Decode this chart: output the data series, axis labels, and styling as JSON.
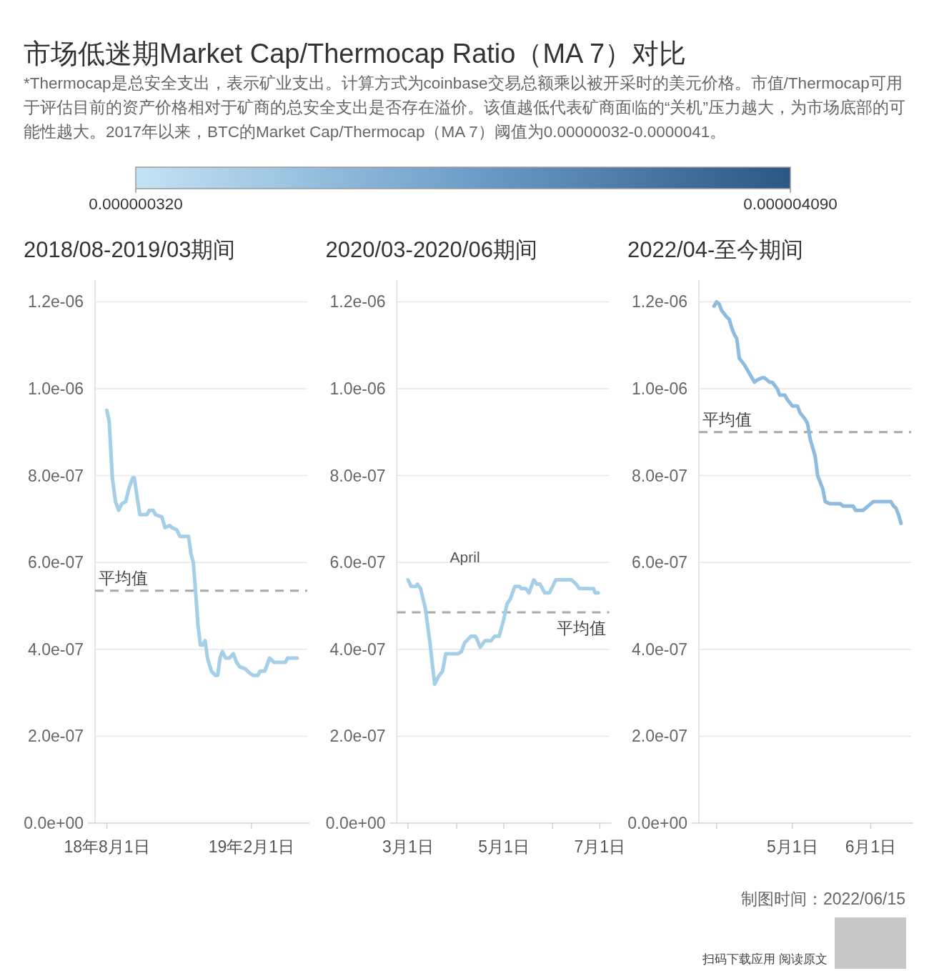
{
  "chart_data": [
    {
      "type": "line",
      "title": "市场低迷期Market Cap/Thermocap Ratio（MA 7）对比",
      "subtitle": "*Thermocap是总安全支出，表示矿业支出。计算方式为coinbase交易总额乘以被开采时的美元价格。市值/Thermocap可用于评估目前的资产价格相对于矿商的总安全支出是否存在溢价。该值越低代表矿商面临的“关机”压力越大，为市场底部的可能性越大。2017年以来，BTC的Market Cap/Thermocap（MA 7）阈值为0.00000032-0.0000041。",
      "clim": [
        3.2e-07,
        4.09e-06
      ],
      "cticks": [
        {
          "value": 3.2e-07,
          "label": "0.000000320"
        },
        {
          "value": 4.09e-06,
          "label": "0.000004090"
        }
      ],
      "x": [
        "2018-08-01",
        "2018-08-04",
        "2018-08-08",
        "2018-08-12",
        "2018-08-16",
        "2018-08-20",
        "2018-08-25",
        "2018-08-29",
        "2018-09-03",
        "2018-09-05",
        "2018-09-09",
        "2018-09-12",
        "2018-09-21",
        "2018-09-24",
        "2018-09-29",
        "2018-10-02",
        "2018-10-10",
        "2018-10-14",
        "2018-10-20",
        "2018-10-23",
        "2018-10-29",
        "2018-11-02",
        "2018-11-13",
        "2018-11-16",
        "2018-11-19",
        "2018-11-22",
        "2018-11-25",
        "2018-11-28",
        "2018-12-01",
        "2018-12-04",
        "2018-12-07",
        "2018-12-12",
        "2018-12-17",
        "2018-12-20",
        "2018-12-23",
        "2018-12-26",
        "2018-12-30",
        "2019-01-04",
        "2019-01-09",
        "2019-01-13",
        "2019-01-17",
        "2019-01-24",
        "2019-01-30",
        "2019-02-03",
        "2019-02-09",
        "2019-02-12",
        "2019-02-18",
        "2019-02-24",
        "2019-03-02",
        "2019-03-16",
        "2019-03-19",
        "2019-03-31"
      ],
      "series": [
        {
          "color": "#a5cee8",
          "values": [
            9.5e-07,
            9.25e-07,
            7.95e-07,
            7.4e-07,
            7.2e-07,
            7.35e-07,
            7.4e-07,
            7.7e-07,
            7.95e-07,
            7.95e-07,
            7.45e-07,
            7.1e-07,
            7.1e-07,
            7.2e-07,
            7.2e-07,
            7.1e-07,
            7.05e-07,
            6.8e-07,
            6.85e-07,
            6.8e-07,
            6.75e-07,
            6.6e-07,
            6.6e-07,
            6.2e-07,
            6e-07,
            5.3e-07,
            4.55e-07,
            4.1e-07,
            4.1e-07,
            4.2e-07,
            3.8e-07,
            3.5e-07,
            3.4e-07,
            3.4e-07,
            3.8e-07,
            3.95e-07,
            3.8e-07,
            3.8e-07,
            3.9e-07,
            3.7e-07,
            3.6e-07,
            3.55e-07,
            3.45e-07,
            3.4e-07,
            3.4e-07,
            3.5e-07,
            3.5e-07,
            3.8e-07,
            3.7e-07,
            3.7e-07,
            3.8e-07,
            3.8e-07
          ]
        }
      ],
      "xlim": [
        "2018-07-17",
        "2019-04-13"
      ],
      "xticks": [
        {
          "value": "2018-08-01",
          "label": "18年8月1日"
        },
        {
          "value": "2019-02-01",
          "label": "19年2月1日"
        }
      ],
      "ylim": [
        0,
        1.25e-06
      ],
      "yticks": [
        {
          "value": 0,
          "label": "0.0e+00"
        },
        {
          "value": 2e-07,
          "label": "2.0e-07"
        },
        {
          "value": 4e-07,
          "label": "4.0e-07"
        },
        {
          "value": 6e-07,
          "label": "6.0e-07"
        },
        {
          "value": 8e-07,
          "label": "8.0e-07"
        },
        {
          "value": 1e-06,
          "label": "1.0e-06"
        },
        {
          "value": 1.2e-06,
          "label": "1.2e-06"
        }
      ],
      "ref_lines": [
        {
          "axis": "y",
          "value": 5.35e-07,
          "label": "平均值",
          "color": "#a9a9a9",
          "line_style": "dashed"
        }
      ],
      "grid": "y",
      "xlabel": "2018/08-2019/03期间"
    },
    {
      "type": "line",
      "x": [
        "2020-03-01",
        "2020-03-03",
        "2020-03-06",
        "2020-03-07",
        "2020-03-09",
        "2020-03-12",
        "2020-03-15",
        "2020-03-17",
        "2020-03-18",
        "2020-03-20",
        "2020-03-23",
        "2020-03-25",
        "2020-04-02",
        "2020-04-04",
        "2020-04-06",
        "2020-04-10",
        "2020-04-13",
        "2020-04-16",
        "2020-04-19",
        "2020-04-23",
        "2020-04-25",
        "2020-04-28",
        "2020-05-01",
        "2020-05-03",
        "2020-05-05",
        "2020-05-08",
        "2020-05-11",
        "2020-05-12",
        "2020-05-15",
        "2020-05-17",
        "2020-05-20",
        "2020-05-22",
        "2020-05-24",
        "2020-05-27",
        "2020-05-30",
        "2020-06-03",
        "2020-06-13",
        "2020-06-16",
        "2020-06-18",
        "2020-06-27",
        "2020-06-28",
        "2020-06-30"
      ],
      "series": [
        {
          "color": "#a5cee8",
          "values": [
            5.6e-07,
            5.45e-07,
            5.45e-07,
            5.5e-07,
            5.4e-07,
            4.95e-07,
            4.15e-07,
            3.5e-07,
            3.2e-07,
            3.35e-07,
            3.5e-07,
            3.9e-07,
            3.9e-07,
            3.95e-07,
            4.15e-07,
            4.3e-07,
            4.3e-07,
            4.05e-07,
            4.2e-07,
            4.2e-07,
            4.3e-07,
            4.3e-07,
            4.7e-07,
            5.05e-07,
            5.15e-07,
            5.45e-07,
            5.45e-07,
            5.4e-07,
            5.4e-07,
            5.3e-07,
            5.6e-07,
            5.5e-07,
            5.5e-07,
            5.3e-07,
            5.3e-07,
            5.6e-07,
            5.6e-07,
            5.5e-07,
            5.4e-07,
            5.4e-07,
            5.3e-07,
            5.3e-07
          ]
        }
      ],
      "xlim": [
        "2020-02-23",
        "2020-07-07"
      ],
      "xticks": [
        {
          "value": "2020-03-01",
          "label": "3月1日"
        },
        {
          "value": "2020-04-01",
          "label": null
        },
        {
          "value": "2020-05-01",
          "label": "5月1日"
        },
        {
          "value": "2020-06-01",
          "label": null
        },
        {
          "value": "2020-07-01",
          "label": "7月1日"
        }
      ],
      "ylim": [
        0,
        1.25e-06
      ],
      "yticks": [
        {
          "value": 0,
          "label": "0.0e+00"
        },
        {
          "value": 2e-07,
          "label": "2.0e-07"
        },
        {
          "value": 4e-07,
          "label": "4.0e-07"
        },
        {
          "value": 6e-07,
          "label": "6.0e-07"
        },
        {
          "value": 8e-07,
          "label": "8.0e-07"
        },
        {
          "value": 1e-06,
          "label": "1.0e-06"
        },
        {
          "value": 1.2e-06,
          "label": "1.2e-06"
        }
      ],
      "ref_lines": [
        {
          "axis": "y",
          "value": 4.85e-07,
          "label": "平均值",
          "color": "#a9a9a9",
          "line_style": "dashed"
        }
      ],
      "grid": "y",
      "xlabel": "2020/03-2020/06期间",
      "annotations": [
        "April"
      ]
    },
    {
      "type": "line",
      "x": [
        "2022-03-31",
        "2022-04-01",
        "2022-04-02",
        "2022-04-03",
        "2022-04-05",
        "2022-04-06",
        "2022-04-07",
        "2022-04-08",
        "2022-04-09",
        "2022-04-10",
        "2022-04-12",
        "2022-04-14",
        "2022-04-16",
        "2022-04-17",
        "2022-04-19",
        "2022-04-20",
        "2022-04-22",
        "2022-04-23",
        "2022-04-25",
        "2022-04-26",
        "2022-04-28",
        "2022-04-29",
        "2022-05-01",
        "2022-05-03",
        "2022-05-04",
        "2022-05-06",
        "2022-05-07",
        "2022-05-08",
        "2022-05-10",
        "2022-05-11",
        "2022-05-13",
        "2022-05-14",
        "2022-05-16",
        "2022-05-20",
        "2022-05-21",
        "2022-05-25",
        "2022-05-26",
        "2022-05-29",
        "2022-05-31",
        "2022-06-02",
        "2022-06-09",
        "2022-06-10",
        "2022-06-11",
        "2022-06-12",
        "2022-06-13"
      ],
      "series": [
        {
          "color": "#8fbcde",
          "values": [
            1.19e-06,
            1.2e-06,
            1.195e-06,
            1.18e-06,
            1.165e-06,
            1.16e-06,
            1.14e-06,
            1.125e-06,
            1.115e-06,
            1.07e-06,
            1.055e-06,
            1.035e-06,
            1.015e-06,
            1.02e-06,
            1.025e-06,
            1.025e-06,
            1.015e-06,
            1.015e-06,
            1e-06,
            9.85e-07,
            9.85e-07,
            9.75e-07,
            9.6e-07,
            9.6e-07,
            9.45e-07,
            9.3e-07,
            9.2e-07,
            8.85e-07,
            8.45e-07,
            8e-07,
            7.7e-07,
            7.4e-07,
            7.35e-07,
            7.35e-07,
            7.3e-07,
            7.3e-07,
            7.2e-07,
            7.2e-07,
            7.3e-07,
            7.4e-07,
            7.4e-07,
            7.3e-07,
            7.25e-07,
            7.1e-07,
            6.9e-07
          ]
        }
      ],
      "xlim": [
        "2022-03-25",
        "2022-06-17"
      ],
      "xticks": [
        {
          "value": "2022-04-01",
          "label": null
        },
        {
          "value": "2022-05-01",
          "label": "5月1日"
        },
        {
          "value": "2022-06-01",
          "label": "6月1日"
        }
      ],
      "ylim": [
        0,
        1.25e-06
      ],
      "yticks": [
        {
          "value": 0,
          "label": "0.0e+00"
        },
        {
          "value": 2e-07,
          "label": "2.0e-07"
        },
        {
          "value": 4e-07,
          "label": "4.0e-07"
        },
        {
          "value": 6e-07,
          "label": "6.0e-07"
        },
        {
          "value": 8e-07,
          "label": "8.0e-07"
        },
        {
          "value": 1e-06,
          "label": "1.0e-06"
        },
        {
          "value": 1.2e-06,
          "label": "1.2e-06"
        }
      ],
      "ref_lines": [
        {
          "axis": "y",
          "value": 9e-07,
          "label": "平均值",
          "color": "#a9a9a9",
          "line_style": "dashed"
        }
      ],
      "grid": "y",
      "xlabel": "2022/04-至今期间",
      "annotations": [
        "制图时间：2022/06/15",
        "扫码下载应用 阅读原文"
      ]
    }
  ]
}
